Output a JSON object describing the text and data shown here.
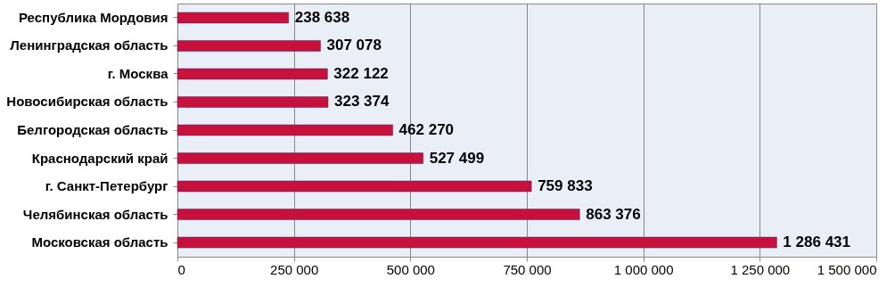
{
  "chart_data": {
    "type": "bar",
    "orientation": "horizontal",
    "categories": [
      "Республика Мордовия",
      "Ленинградская область",
      "г. Москва",
      "Новосибирская область",
      "Белгородская область",
      "Краснодарский край",
      "г. Санкт-Петербург",
      "Челябинская область",
      "Московская область"
    ],
    "values": [
      238638,
      307078,
      322122,
      323374,
      462270,
      527499,
      759833,
      863376,
      1286431
    ],
    "value_labels": [
      "238 638",
      "307 078",
      "322 122",
      "323 374",
      "462 270",
      "527 499",
      "759 833",
      "863 376",
      "1 286 431"
    ],
    "color": "#c8103c",
    "xlim": [
      0,
      1500000
    ],
    "xticks": [
      0,
      {
        "value": 250000,
        "label": "250 000"
      },
      {
        "value": 500000,
        "label": "500 000"
      },
      {
        "value": 750000,
        "label": "750 000"
      },
      {
        "value": 1000000,
        "label": "1 000 000"
      },
      {
        "value": 1250000,
        "label": "1 250 000"
      },
      {
        "value": 1500000,
        "label": "1 500 000"
      }
    ],
    "grid": "x"
  }
}
